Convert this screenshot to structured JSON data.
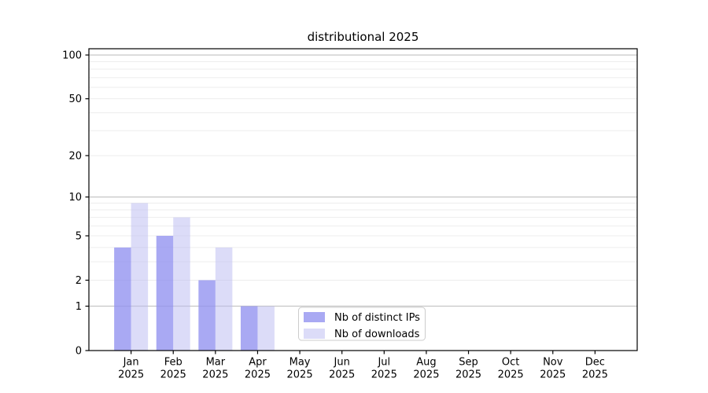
{
  "chart_data": {
    "type": "bar",
    "title": "distributional 2025",
    "categories": [
      "Jan 2025",
      "Feb 2025",
      "Mar 2025",
      "Apr 2025",
      "May 2025",
      "Jun 2025",
      "Jul 2025",
      "Aug 2025",
      "Sep 2025",
      "Oct 2025",
      "Nov 2025",
      "Dec 2025"
    ],
    "series": [
      {
        "name": "Nb of distinct IPs",
        "values": [
          4,
          5,
          2,
          1,
          0,
          0,
          0,
          0,
          0,
          0,
          0,
          0
        ],
        "color": "#a9a9f3",
        "css_color": "rgba(145,145,240,0.78)"
      },
      {
        "name": "Nb of downloads",
        "values": [
          9,
          7,
          4,
          1,
          0,
          0,
          0,
          0,
          0,
          0,
          0,
          0
        ],
        "color": "#dcdcf8",
        "css_color": "rgba(185,185,242,0.5)"
      }
    ],
    "xlabel": "",
    "ylabel": "",
    "yscale": "log1p",
    "ylim": [
      0,
      110
    ],
    "ytick_labels": [
      100,
      50,
      20,
      10,
      5,
      2,
      1,
      0
    ],
    "major_gridlines": [
      1,
      10,
      100
    ],
    "minor_gridlines": [
      2,
      3,
      4,
      5,
      6,
      7,
      8,
      9,
      20,
      30,
      40,
      50,
      60,
      70,
      80,
      90
    ],
    "grid_color_major": "#c6c6c6",
    "grid_color_minor": "#ededed",
    "axis_color": "#000000",
    "legend": {
      "position": "lower center",
      "entries": [
        "Nb of distinct IPs",
        "Nb of downloads"
      ],
      "border_color": "#cccccc",
      "background": "rgba(255,255,255,0.9)"
    }
  }
}
